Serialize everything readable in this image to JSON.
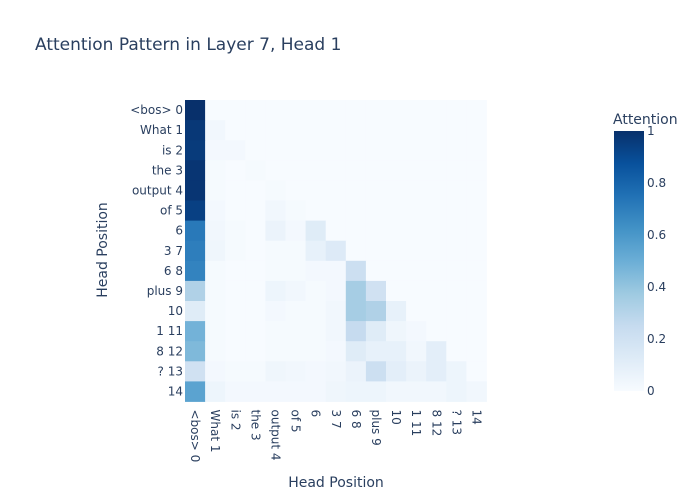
{
  "chart_data": {
    "type": "heatmap",
    "title": "Attention Pattern in Layer 7, Head 1",
    "xlabel": "Head Position",
    "ylabel": "Head Position",
    "x_categories": [
      "<bos> 0",
      "What 1",
      "is 2",
      "the 3",
      "output 4",
      "of 5",
      "6",
      "3 7",
      "6 8",
      "plus 9",
      "10",
      "1 11",
      "8 12",
      "? 13",
      "14"
    ],
    "y_categories": [
      "<bos> 0",
      "What 1",
      "is 2",
      "the 3",
      "output 4",
      "of 5",
      "6",
      "3 7",
      "6 8",
      "plus 9",
      "10",
      "1 11",
      "8 12",
      "? 13",
      "14"
    ],
    "colorbar": {
      "title": "Attention",
      "range": [
        0,
        1
      ],
      "ticks": [
        "0",
        "0.2",
        "0.4",
        "0.6",
        "0.8",
        "1"
      ],
      "tick_values": [
        0,
        0.2,
        0.4,
        0.6,
        0.8,
        1.0
      ]
    },
    "colorscale": [
      [
        0.0,
        "#f7fbff"
      ],
      [
        0.125,
        "#deebf7"
      ],
      [
        0.25,
        "#c6dbef"
      ],
      [
        0.375,
        "#9ecae1"
      ],
      [
        0.5,
        "#6baed6"
      ],
      [
        0.625,
        "#4292c6"
      ],
      [
        0.75,
        "#2171b5"
      ],
      [
        0.875,
        "#08519c"
      ],
      [
        1.0,
        "#08306b"
      ]
    ],
    "z": [
      [
        1.0,
        0.0,
        0.0,
        0.0,
        0.0,
        0.0,
        0.0,
        0.0,
        0.0,
        0.0,
        0.0,
        0.0,
        0.0,
        0.0,
        0.0
      ],
      [
        0.97,
        0.03,
        0.0,
        0.0,
        0.0,
        0.0,
        0.0,
        0.0,
        0.0,
        0.0,
        0.0,
        0.0,
        0.0,
        0.0,
        0.0
      ],
      [
        0.96,
        0.02,
        0.02,
        0.0,
        0.0,
        0.0,
        0.0,
        0.0,
        0.0,
        0.0,
        0.0,
        0.0,
        0.0,
        0.0,
        0.0
      ],
      [
        0.98,
        0.01,
        0.0,
        0.01,
        0.0,
        0.0,
        0.0,
        0.0,
        0.0,
        0.0,
        0.0,
        0.0,
        0.0,
        0.0,
        0.0
      ],
      [
        0.98,
        0.01,
        0.0,
        0.0,
        0.01,
        0.0,
        0.0,
        0.0,
        0.0,
        0.0,
        0.0,
        0.0,
        0.0,
        0.0,
        0.0
      ],
      [
        0.94,
        0.02,
        0.0,
        0.0,
        0.03,
        0.01,
        0.0,
        0.0,
        0.0,
        0.0,
        0.0,
        0.0,
        0.0,
        0.0,
        0.0
      ],
      [
        0.72,
        0.03,
        0.01,
        0.0,
        0.06,
        0.02,
        0.12,
        0.0,
        0.0,
        0.0,
        0.0,
        0.0,
        0.0,
        0.0,
        0.0
      ],
      [
        0.7,
        0.04,
        0.01,
        0.0,
        0.01,
        0.01,
        0.08,
        0.13,
        0.0,
        0.0,
        0.0,
        0.0,
        0.0,
        0.0,
        0.0
      ],
      [
        0.68,
        0.01,
        0.0,
        0.0,
        0.01,
        0.01,
        0.02,
        0.02,
        0.22,
        0.0,
        0.0,
        0.0,
        0.0,
        0.0,
        0.0
      ],
      [
        0.32,
        0.01,
        0.0,
        0.0,
        0.05,
        0.03,
        0.01,
        0.02,
        0.35,
        0.2,
        0.0,
        0.0,
        0.0,
        0.0,
        0.0
      ],
      [
        0.12,
        0.01,
        0.0,
        0.0,
        0.02,
        0.01,
        0.01,
        0.03,
        0.35,
        0.32,
        0.08,
        0.0,
        0.0,
        0.0,
        0.0
      ],
      [
        0.48,
        0.01,
        0.0,
        0.0,
        0.01,
        0.01,
        0.01,
        0.03,
        0.25,
        0.12,
        0.04,
        0.02,
        0.0,
        0.0,
        0.0
      ],
      [
        0.45,
        0.01,
        0.0,
        0.0,
        0.01,
        0.01,
        0.01,
        0.02,
        0.12,
        0.08,
        0.08,
        0.03,
        0.1,
        0.0,
        0.0
      ],
      [
        0.2,
        0.02,
        0.01,
        0.01,
        0.04,
        0.03,
        0.02,
        0.03,
        0.06,
        0.22,
        0.1,
        0.06,
        0.1,
        0.05,
        0.0
      ],
      [
        0.55,
        0.05,
        0.02,
        0.02,
        0.02,
        0.02,
        0.02,
        0.04,
        0.05,
        0.05,
        0.03,
        0.03,
        0.03,
        0.05,
        0.03
      ]
    ]
  }
}
